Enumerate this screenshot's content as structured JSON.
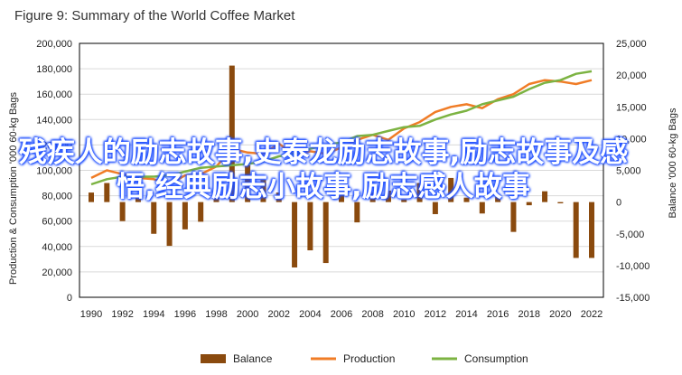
{
  "title": "Figure 9: Summary of the World Coffee Market",
  "overlay_text": "残疾人的励志故事,史泰龙励志故事,励志故事及感悟,经典励志小故事,励志感人故事",
  "colors": {
    "balance": "#8a4a0e",
    "production": "#f07c26",
    "consumption": "#7cb342",
    "grid": "#d9d9d9",
    "frame": "#000000"
  },
  "chart_data": {
    "type": "bar+line",
    "title": "Figure 9: Summary of the World Coffee Market",
    "ylabel_left": "Production & Consumption '000 60-kg Bags",
    "ylabel_right": "Balance '000 60-kg Bags",
    "ylim_left": [
      0,
      200000
    ],
    "ylim_right": [
      -15000,
      25000
    ],
    "left_ticks": [
      "0",
      "20,000",
      "40,000",
      "60,000",
      "80,000",
      "100,000",
      "120,000",
      "140,000",
      "160,000",
      "180,000",
      "200,000"
    ],
    "right_ticks": [
      "-15,000",
      "-10,000",
      "-5,000",
      "0",
      "5,000",
      "10,000",
      "15,000",
      "20,000",
      "25,000"
    ],
    "x_ticks": [
      "1990",
      "1992",
      "1994",
      "1996",
      "1998",
      "2000",
      "2002",
      "2004",
      "2006",
      "2008",
      "2010",
      "2012",
      "2014",
      "2016",
      "2018",
      "2020",
      "2022"
    ],
    "grid": true,
    "legend_position": "bottom",
    "x": [
      1990,
      1991,
      1992,
      1993,
      1994,
      1995,
      1996,
      1997,
      1998,
      1999,
      2000,
      2001,
      2002,
      2003,
      2004,
      2005,
      2006,
      2007,
      2008,
      2009,
      2010,
      2011,
      2012,
      2013,
      2014,
      2015,
      2016,
      2017,
      2018,
      2019,
      2020,
      2021,
      2022
    ],
    "series": [
      {
        "name": "Balance",
        "type": "bar",
        "axis": "right",
        "values": [
          1500,
          3000,
          -3000,
          700,
          -5000,
          -6900,
          -4300,
          -3100,
          1500,
          21500,
          5800,
          3500,
          1500,
          -10300,
          -7600,
          -9600,
          1700,
          -3200,
          1500,
          1800,
          400,
          3000,
          -1900,
          3800,
          700,
          -1800,
          800,
          -4700,
          -500,
          1700,
          -200,
          -8800,
          -8800
        ]
      },
      {
        "name": "Production",
        "type": "line",
        "axis": "left",
        "values": [
          94000,
          100000,
          97000,
          94000,
          93000,
          89000,
          96000,
          97000,
          103000,
          117000,
          114000,
          113000,
          121000,
          112000,
          115000,
          113000,
          118000,
          124000,
          128000,
          124000,
          133000,
          138000,
          146000,
          150000,
          152000,
          149000,
          156000,
          160000,
          168000,
          171000,
          170000,
          168000,
          171000
        ]
      },
      {
        "name": "Consumption",
        "type": "line",
        "axis": "left",
        "values": [
          89000,
          93000,
          95000,
          95000,
          95000,
          96000,
          99000,
          102000,
          103000,
          104000,
          105000,
          107000,
          111000,
          113000,
          117000,
          120000,
          122000,
          127000,
          128000,
          131000,
          134000,
          135000,
          140000,
          144000,
          147000,
          152000,
          155000,
          158000,
          164000,
          169000,
          171000,
          176000,
          178000
        ]
      }
    ]
  }
}
